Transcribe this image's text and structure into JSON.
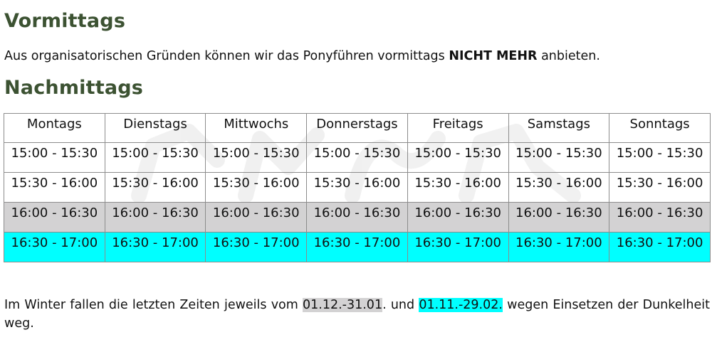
{
  "morning": {
    "title": "Vormittags",
    "text_before": "Aus organisatorischen Gründen können wir das Ponyführen vormittags ",
    "text_bold": "NICHT MEHR",
    "text_after": " anbieten."
  },
  "afternoon": {
    "title": "Nachmittags",
    "days": [
      "Montags",
      "Dienstags",
      "Mittwochs",
      "Donnerstags",
      "Freitags",
      "Samstags",
      "Sonntags"
    ],
    "slots": [
      {
        "time": "15:00 - 15:30",
        "highlight": "none"
      },
      {
        "time": "15:30 - 16:00",
        "highlight": "none"
      },
      {
        "time": "16:00 - 16:30",
        "highlight": "gray"
      },
      {
        "time": "16:30 - 17:00",
        "highlight": "cyan"
      }
    ]
  },
  "colors": {
    "heading": "#3c5232",
    "gray_highlight": "#d3d2d3",
    "cyan_highlight": "#00ffff"
  },
  "winter_note": {
    "part1": "Im Winter fallen die letzten Zeiten jeweils vom ",
    "range_gray": "01.12.-31.01",
    "part2": ". und ",
    "range_cyan": "01.11.-29.02.",
    "part3": " wegen Einsetzen der Dunkelheit weg."
  }
}
